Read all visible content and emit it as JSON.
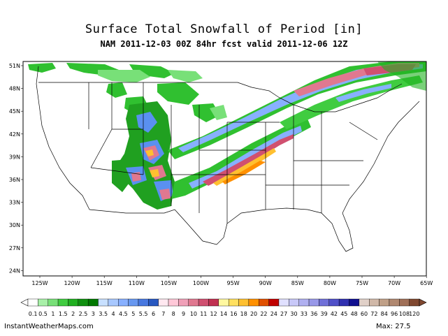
{
  "header": {
    "title": "Surface Total Snowfall of Period [in]",
    "subtitle": "NAM 2011-12-03 00Z 84hr fcst valid 2011-12-06 12Z"
  },
  "map": {
    "lat_labels": [
      "51N",
      "48N",
      "45N",
      "42N",
      "39N",
      "36N",
      "33N",
      "30N",
      "27N",
      "24N"
    ],
    "lon_labels": [
      "125W",
      "120W",
      "115W",
      "110W",
      "105W",
      "100W",
      "95W",
      "90W",
      "85W",
      "80W",
      "75W",
      "70W",
      "65W"
    ]
  },
  "colorbar": {
    "labels": [
      "0.1",
      "0.5",
      "1",
      "1.5",
      "2",
      "2.5",
      "3",
      "3.5",
      "4",
      "4.5",
      "5",
      "5.5",
      "6",
      "7",
      "8",
      "9",
      "10",
      "11",
      "12",
      "14",
      "16",
      "18",
      "20",
      "22",
      "24",
      "27",
      "30",
      "33",
      "36",
      "39",
      "42",
      "45",
      "48",
      "60",
      "72",
      "84",
      "96",
      "108",
      "120"
    ],
    "colors": [
      "#ffffff",
      "#a8f0a8",
      "#78e078",
      "#40cc40",
      "#20b020",
      "#109010",
      "#007800",
      "#c8e0ff",
      "#a8c8ff",
      "#88b0ff",
      "#6898f0",
      "#4878e0",
      "#2858c0",
      "#ffe8f0",
      "#ffc8d8",
      "#f0a0b8",
      "#e07890",
      "#d05070",
      "#c03050",
      "#fff8a0",
      "#ffe060",
      "#ffc030",
      "#ff9000",
      "#e05000",
      "#c00000",
      "#e0e0ff",
      "#c8c8f8",
      "#b0b0f0",
      "#9898e8",
      "#7070d8",
      "#5050c8",
      "#3030b0",
      "#101090",
      "#e0d0c8",
      "#d0b8a8",
      "#c0a088",
      "#b08870",
      "#a07058",
      "#804830"
    ]
  },
  "footer": {
    "source": "InstantWeatherMaps.com",
    "max_label": "Max:  27.5"
  }
}
